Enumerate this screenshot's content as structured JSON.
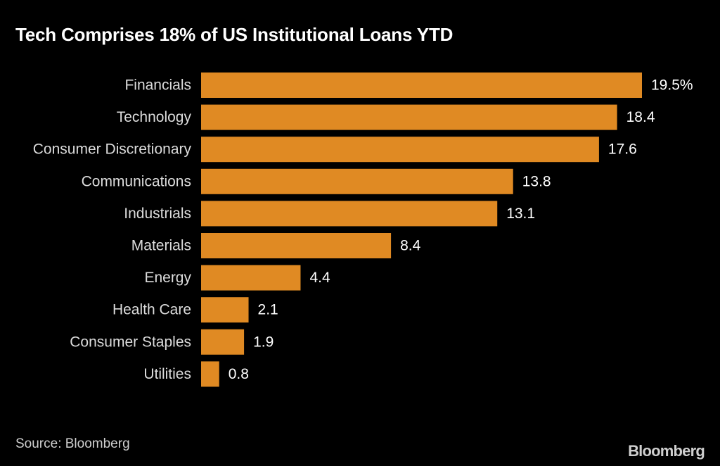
{
  "chart_data": {
    "type": "bar",
    "orientation": "horizontal",
    "title": "Tech Comprises 18% of US Institutional Loans YTD",
    "categories": [
      "Financials",
      "Technology",
      "Consumer Discretionary",
      "Communications",
      "Industrials",
      "Materials",
      "Energy",
      "Health Care",
      "Consumer Staples",
      "Utilities"
    ],
    "values": [
      19.5,
      18.4,
      17.6,
      13.8,
      13.1,
      8.4,
      4.4,
      2.1,
      1.9,
      0.8
    ],
    "value_labels": [
      "19.5%",
      "18.4",
      "17.6",
      "13.8",
      "13.1",
      "8.4",
      "4.4",
      "2.1",
      "1.9",
      "0.8"
    ],
    "xlim": [
      0,
      19.5
    ],
    "grid": false,
    "legend": "none",
    "colors": {
      "bar": "#E08A23",
      "background": "#000000"
    }
  },
  "footer": {
    "source": "Source: Bloomberg",
    "brand": "Bloomberg"
  }
}
